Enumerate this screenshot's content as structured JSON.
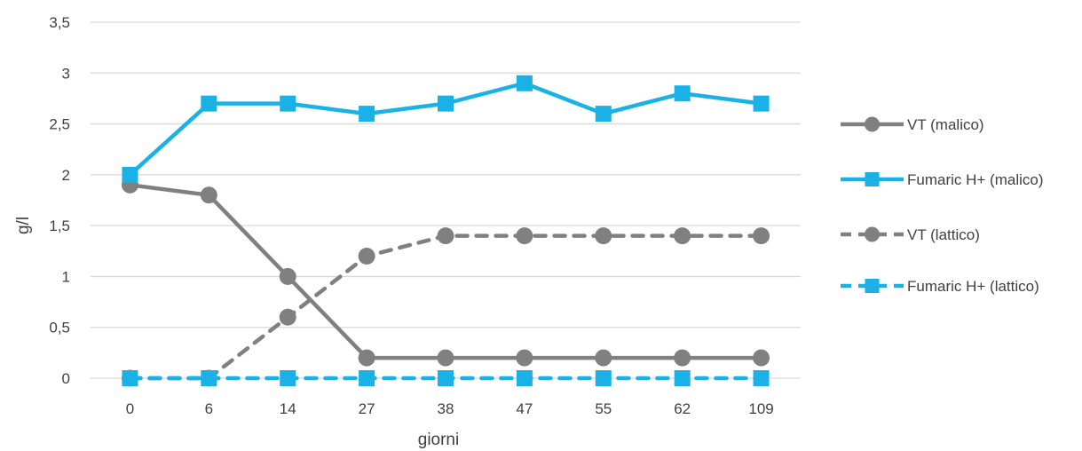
{
  "chart_data": {
    "type": "line",
    "xlabel": "giorni",
    "ylabel": "g/l",
    "categories": [
      "0",
      "6",
      "14",
      "27",
      "38",
      "47",
      "55",
      "62",
      "109"
    ],
    "ylim": [
      0,
      3.5
    ],
    "yticks": [
      "0",
      "0,5",
      "1",
      "1,5",
      "2",
      "2,5",
      "3",
      "3,5"
    ],
    "grid": true,
    "legend_position": "right",
    "series": [
      {
        "name": "VT (malico)",
        "values": [
          1.9,
          1.8,
          1.0,
          0.2,
          0.2,
          0.2,
          0.2,
          0.2,
          0.2
        ],
        "color": "#808080",
        "marker": "circle",
        "dash": "solid"
      },
      {
        "name": "Fumaric H+ (malico)",
        "values": [
          2.0,
          2.7,
          2.7,
          2.6,
          2.7,
          2.9,
          2.6,
          2.8,
          2.7
        ],
        "color": "#1AB2E6",
        "marker": "square",
        "dash": "solid"
      },
      {
        "name": "VT (lattico)",
        "values": [
          0.0,
          0.0,
          0.6,
          1.2,
          1.4,
          1.4,
          1.4,
          1.4,
          1.4
        ],
        "color": "#808080",
        "marker": "circle",
        "dash": "dashed"
      },
      {
        "name": "Fumaric H+ (lattico)",
        "values": [
          0.0,
          0.0,
          0.0,
          0.0,
          0.0,
          0.0,
          0.0,
          0.0,
          0.0
        ],
        "color": "#1AB2E6",
        "marker": "square",
        "dash": "dashed"
      }
    ]
  }
}
